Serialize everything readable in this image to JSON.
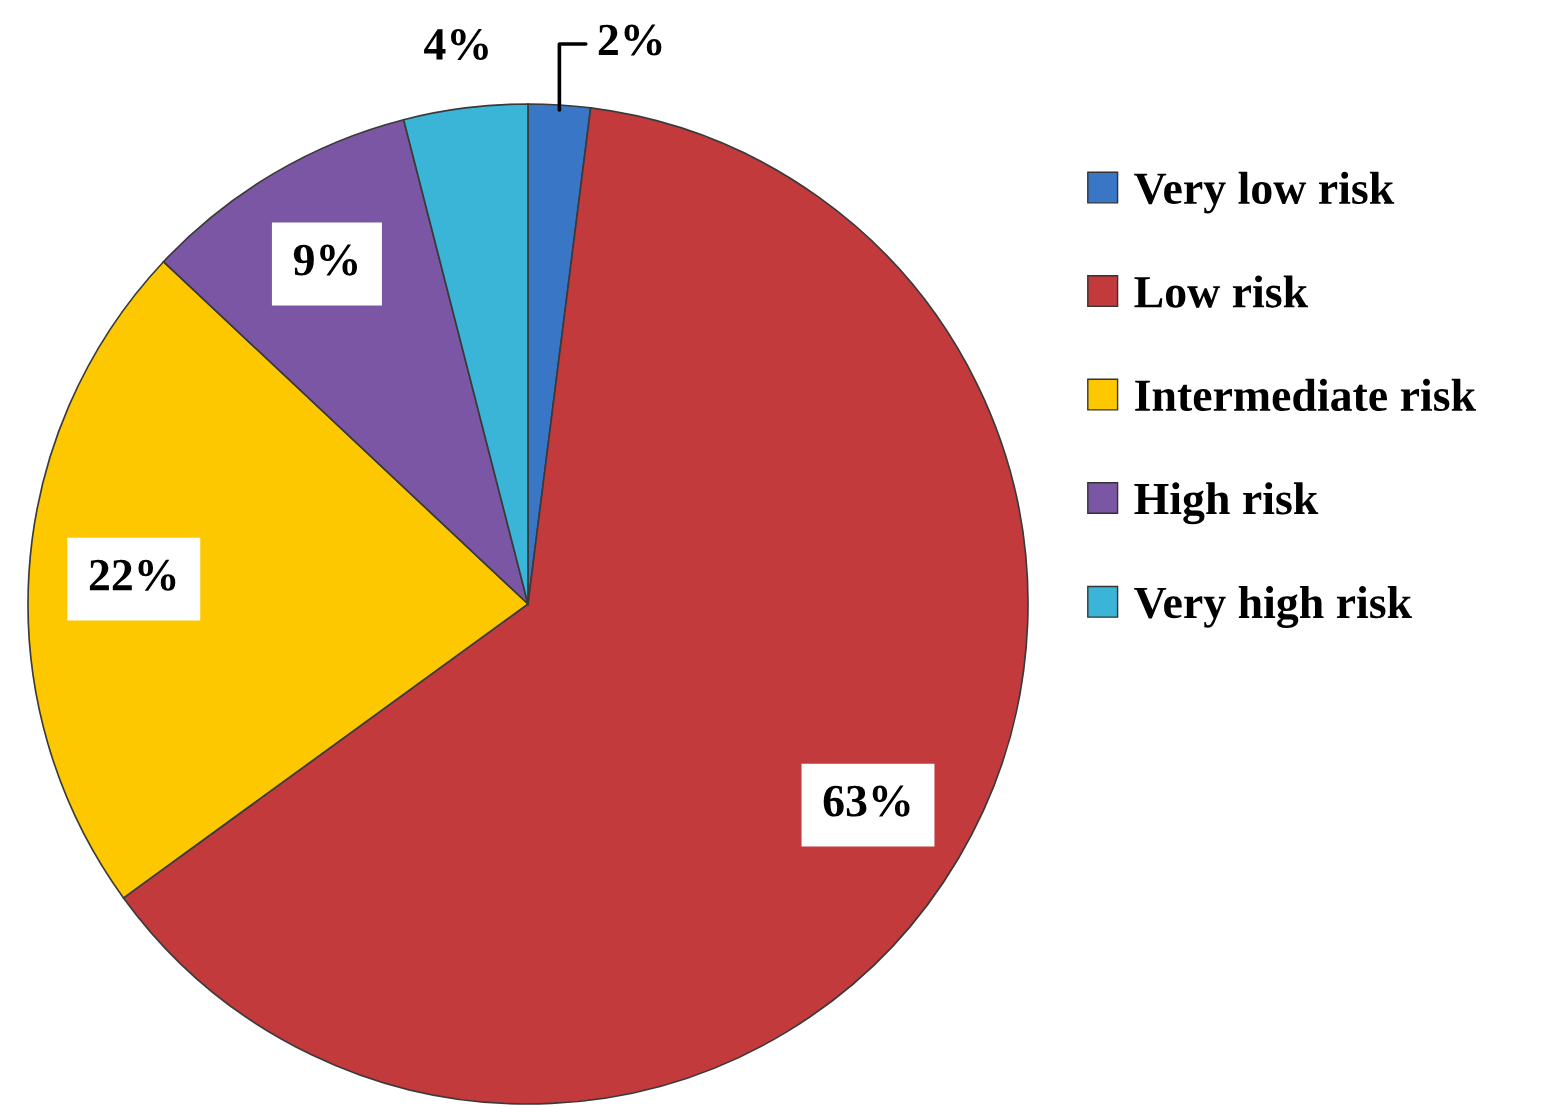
{
  "chart_data": {
    "type": "pie",
    "categories": [
      "Very low risk",
      "Low risk",
      "Intermediate risk",
      "High risk",
      "Very high risk"
    ],
    "values": [
      2,
      63,
      22,
      9,
      4
    ],
    "colors": [
      "#3a76c6",
      "#c23a3c",
      "#fdc800",
      "#7a56a4",
      "#3ab5d8"
    ],
    "value_labels": [
      "2%",
      "63%",
      "22%",
      "9%",
      "4%"
    ],
    "legend": "right"
  }
}
